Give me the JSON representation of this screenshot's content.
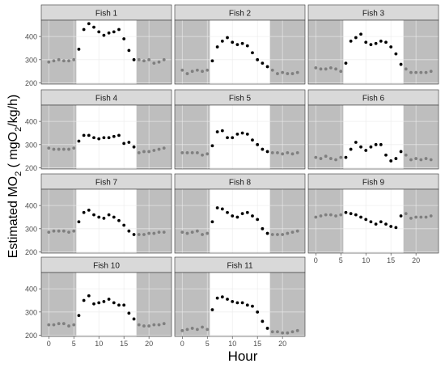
{
  "chart_data": {
    "type": "scatter",
    "xlabel": "Hour",
    "ylabel": "Estimated MO2 ( mgO2/kg/h)",
    "ylabel_parts": {
      "pre": "Estimated MO",
      "sub1": "2",
      "mid": " ( mgO",
      "sub2": "2",
      "post": "/kg/h)"
    },
    "xlim": [
      -1.5,
      24.5
    ],
    "ylim": [
      195,
      470
    ],
    "x_ticks": [
      0,
      5,
      10,
      15,
      20
    ],
    "y_ticks": [
      200,
      300,
      400
    ],
    "grid": true,
    "dark_periods": [
      [
        -1.5,
        5.5
      ],
      [
        17.5,
        24.5
      ]
    ],
    "colors": {
      "dark_bg": "#bebebe",
      "light_bg": "#ffffff",
      "strip_bg": "#d9d9d9",
      "point_light": "#000000",
      "point_dark": "#7f7f7f",
      "grid": "#ebebeb",
      "axis_text": "#4d4d4d"
    },
    "panels": [
      {
        "title": "Fish 1",
        "y": [
          290,
          295,
          300,
          295,
          295,
          300,
          345,
          430,
          455,
          440,
          420,
          405,
          415,
          420,
          430,
          390,
          340,
          300,
          300,
          295,
          300,
          285,
          290,
          300
        ]
      },
      {
        "title": "Fish 2",
        "y": [
          255,
          240,
          250,
          255,
          250,
          255,
          295,
          355,
          380,
          395,
          375,
          365,
          370,
          360,
          330,
          300,
          285,
          270,
          255,
          240,
          245,
          240,
          240,
          245
        ]
      },
      {
        "title": "Fish 3",
        "y": [
          265,
          260,
          260,
          265,
          260,
          250,
          285,
          380,
          395,
          410,
          375,
          365,
          370,
          380,
          375,
          355,
          325,
          280,
          260,
          245,
          245,
          245,
          245,
          250
        ]
      },
      {
        "title": "Fish 4",
        "y": [
          285,
          280,
          280,
          280,
          280,
          285,
          315,
          340,
          340,
          330,
          325,
          330,
          330,
          335,
          340,
          305,
          310,
          290,
          265,
          270,
          270,
          275,
          280,
          285
        ]
      },
      {
        "title": "Fish 5",
        "y": [
          265,
          265,
          265,
          265,
          255,
          260,
          295,
          355,
          360,
          330,
          330,
          345,
          350,
          345,
          320,
          300,
          280,
          270,
          265,
          265,
          260,
          265,
          260,
          265
        ]
      },
      {
        "title": "Fish 6",
        "y": [
          245,
          240,
          250,
          240,
          235,
          245,
          245,
          280,
          310,
          290,
          275,
          290,
          300,
          300,
          255,
          230,
          240,
          270,
          255,
          235,
          240,
          235,
          240,
          235
        ]
      },
      {
        "title": "Fish 7",
        "y": [
          285,
          290,
          290,
          290,
          285,
          290,
          330,
          370,
          380,
          360,
          350,
          345,
          360,
          350,
          335,
          315,
          290,
          275,
          275,
          275,
          280,
          280,
          285,
          285
        ]
      },
      {
        "title": "Fish 8",
        "y": [
          285,
          280,
          285,
          290,
          275,
          280,
          330,
          390,
          385,
          370,
          355,
          350,
          365,
          370,
          355,
          340,
          300,
          280,
          275,
          275,
          275,
          280,
          285,
          290
        ]
      },
      {
        "title": "Fish 9",
        "y": [
          350,
          355,
          360,
          360,
          355,
          360,
          370,
          365,
          360,
          350,
          340,
          330,
          320,
          330,
          320,
          310,
          305,
          355,
          365,
          345,
          350,
          350,
          350,
          355
        ]
      },
      {
        "title": "Fish 10",
        "y": [
          245,
          245,
          250,
          250,
          240,
          245,
          285,
          350,
          370,
          335,
          340,
          345,
          355,
          340,
          330,
          330,
          295,
          270,
          245,
          240,
          240,
          245,
          245,
          250
        ]
      },
      {
        "title": "Fish 11",
        "y": [
          220,
          225,
          230,
          225,
          235,
          225,
          310,
          360,
          365,
          355,
          345,
          340,
          340,
          330,
          325,
          300,
          260,
          230,
          215,
          215,
          210,
          210,
          215,
          220
        ]
      }
    ]
  }
}
